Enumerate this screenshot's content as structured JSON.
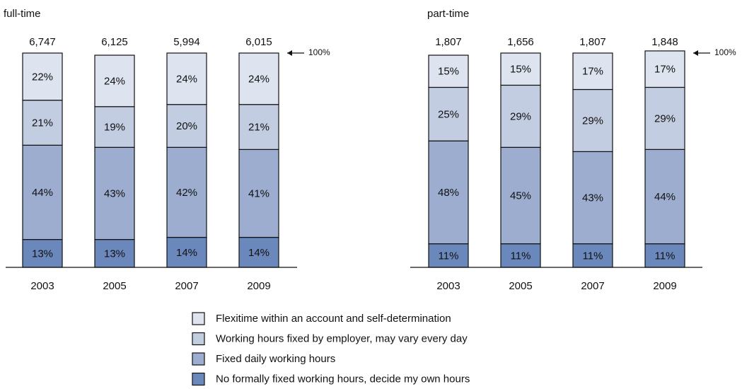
{
  "chart_data": [
    {
      "type": "bar",
      "stacked": true,
      "title": "full-time",
      "categories": [
        "2003",
        "2005",
        "2007",
        "2009"
      ],
      "totals": [
        {
          "value": 6747,
          "label": "6,747"
        },
        {
          "value": 6125,
          "label": "6,125"
        },
        {
          "value": 5994,
          "label": "5,994"
        },
        {
          "value": 6015,
          "label": "6,015"
        }
      ],
      "top_label": "100%",
      "ylim": [
        0,
        100
      ],
      "series": [
        {
          "name": "Flexitime within an account and self-determination",
          "color": "#dde3ef",
          "label_color": "#111111",
          "values": [
            22,
            24,
            24,
            24
          ],
          "value_labels": [
            "22%",
            "24%",
            "24%",
            "24%"
          ]
        },
        {
          "name": "Working hours fixed by employer, may vary every day",
          "color": "#c3cde1",
          "label_color": "#111111",
          "values": [
            21,
            19,
            20,
            21
          ],
          "value_labels": [
            "21%",
            "19%",
            "20%",
            "21%"
          ]
        },
        {
          "name": "Fixed daily working hours",
          "color": "#9cadcf",
          "label_color": "#111111",
          "values": [
            44,
            43,
            42,
            41
          ],
          "value_labels": [
            "44%",
            "43%",
            "42%",
            "41%"
          ]
        },
        {
          "name": "No formally fixed working hours, decide my own hours",
          "color": "#6b88bc",
          "label_color": "#ffffff",
          "values": [
            13,
            13,
            14,
            14
          ],
          "value_labels": [
            "13%",
            "13%",
            "14%",
            "14%"
          ]
        }
      ]
    },
    {
      "type": "bar",
      "stacked": true,
      "title": "part-time",
      "categories": [
        "2003",
        "2005",
        "2007",
        "2009"
      ],
      "totals": [
        {
          "value": 1807,
          "label": "1,807"
        },
        {
          "value": 1656,
          "label": "1,656"
        },
        {
          "value": 1807,
          "label": "1,807"
        },
        {
          "value": 1848,
          "label": "1,848"
        }
      ],
      "top_label": "100%",
      "ylim": [
        0,
        100
      ],
      "series": [
        {
          "color": "#dde3ef",
          "label_color": "#111111",
          "values": [
            15,
            15,
            17,
            17
          ],
          "value_labels": [
            "15%",
            "15%",
            "17%",
            "17%"
          ]
        },
        {
          "color": "#c3cde1",
          "label_color": "#111111",
          "values": [
            25,
            29,
            29,
            29
          ],
          "value_labels": [
            "25%",
            "29%",
            "29%",
            "29%"
          ]
        },
        {
          "color": "#9cadcf",
          "label_color": "#111111",
          "values": [
            48,
            45,
            43,
            44
          ],
          "value_labels": [
            "48%",
            "45%",
            "43%",
            "44%"
          ]
        },
        {
          "color": "#6b88bc",
          "label_color": "#ffffff",
          "values": [
            11,
            11,
            11,
            11
          ],
          "value_labels": [
            "11%",
            "11%",
            "11%",
            "11%"
          ]
        }
      ]
    }
  ]
}
